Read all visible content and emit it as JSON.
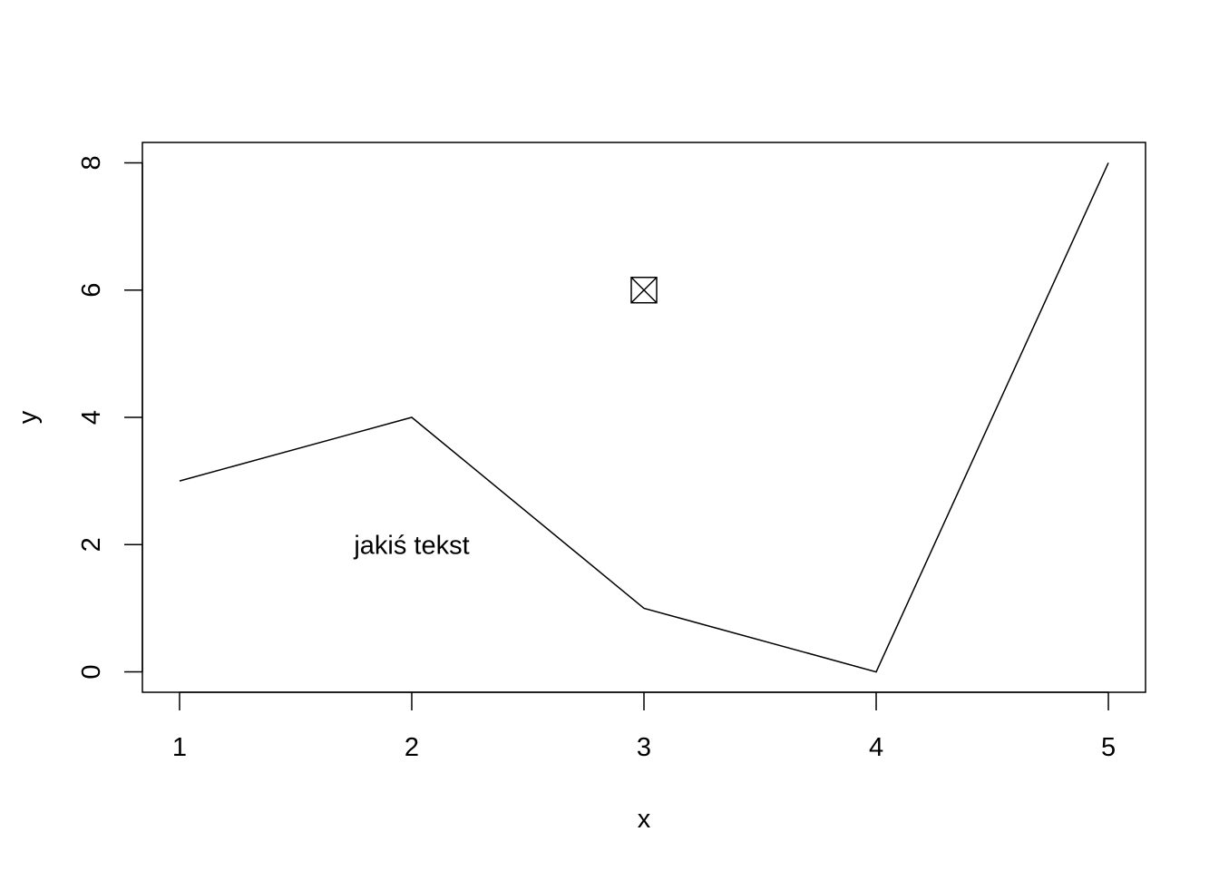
{
  "chart_data": {
    "type": "line",
    "title": "",
    "xlabel": "x",
    "ylabel": "y",
    "x": [
      1,
      2,
      3,
      4,
      5
    ],
    "series": [
      {
        "values": [
          3,
          4,
          1,
          0,
          8
        ]
      }
    ],
    "x_ticks": [
      "1",
      "2",
      "3",
      "4",
      "5"
    ],
    "y_ticks": [
      "0",
      "2",
      "4",
      "6",
      "8"
    ],
    "xlim": [
      0.84,
      5.16
    ],
    "ylim": [
      -0.32,
      8.32
    ],
    "grid": false,
    "line_color": "#000000",
    "annotations": [
      {
        "type": "text",
        "label": "jakiś tekst",
        "x": 2,
        "y": 2
      },
      {
        "type": "point",
        "symbol": "square-with-x",
        "x": 3,
        "y": 6
      }
    ]
  }
}
